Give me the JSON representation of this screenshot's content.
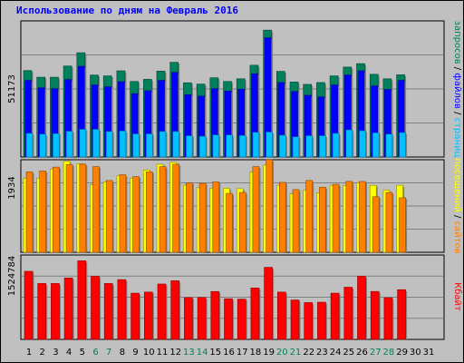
{
  "title": "Использование по дням на Февраль 2016",
  "colors": {
    "background": "#c0c0c0",
    "hits": "#00805c",
    "files": "#0000ff",
    "pages": "#00c0ff",
    "visits": "#ffff00",
    "sites": "#ff8000",
    "kbytes": "#ff0000",
    "weekday_label": "#000000",
    "weekend_label": "#00805c"
  },
  "chart_data": [
    {
      "type": "bar",
      "panel": "top",
      "max_label": "51173",
      "categories": [
        "1",
        "2",
        "3",
        "4",
        "5",
        "6",
        "7",
        "8",
        "9",
        "10",
        "11",
        "12",
        "13",
        "14",
        "15",
        "16",
        "17",
        "18",
        "19",
        "20",
        "21",
        "22",
        "23",
        "24",
        "25",
        "26",
        "27",
        "28",
        "29",
        "30",
        "31"
      ],
      "weekend_days": [
        "6",
        "7",
        "13",
        "14",
        "20",
        "21",
        "27",
        "28"
      ],
      "ylim": [
        0,
        51173
      ],
      "series": [
        {
          "name": "запросов",
          "color_key": "hits",
          "values": [
            32500,
            30000,
            30000,
            34200,
            39200,
            30800,
            30500,
            32400,
            28400,
            29200,
            32300,
            35600,
            27900,
            27400,
            29800,
            28400,
            29400,
            34500,
            47700,
            32200,
            28200,
            27300,
            28000,
            30500,
            33800,
            35100,
            31100,
            29400,
            30900,
            null,
            null
          ]
        },
        {
          "name": "файлов",
          "color_key": "files",
          "values": [
            28800,
            26000,
            25700,
            29100,
            34100,
            27100,
            26400,
            28300,
            23800,
            24900,
            28800,
            31800,
            23400,
            22900,
            25700,
            24800,
            25500,
            31300,
            44800,
            28000,
            24600,
            23200,
            22600,
            27100,
            30800,
            32400,
            26700,
            25400,
            28800,
            null,
            null
          ]
        },
        {
          "name": "страниц",
          "color_key": "pages",
          "values": [
            8900,
            8600,
            8800,
            9700,
            10400,
            10400,
            9600,
            9800,
            8700,
            8700,
            9600,
            9600,
            8000,
            7800,
            8300,
            8300,
            8100,
            9300,
            9400,
            8200,
            7600,
            8000,
            8000,
            8900,
            10200,
            9900,
            9100,
            8600,
            9200,
            null,
            null
          ]
        },
        {
          "name": "посещений",
          "color_key": "visits",
          "values": [
            1550,
            1550,
            1740,
            1900,
            1850,
            1410,
            1470,
            1600,
            1550,
            1720,
            1840,
            1880,
            1400,
            1350,
            1340,
            1340,
            1330,
            1680,
            1820,
            1400,
            1220,
            1300,
            1240,
            1400,
            1400,
            1450,
            1400,
            1300,
            1400,
            null,
            null
          ]
        },
        {
          "name": "сайтов",
          "color_key": "sites",
          "values": [
            1680,
            1700,
            1780,
            1830,
            1840,
            1790,
            1500,
            1620,
            1580,
            1680,
            1790,
            1840,
            1450,
            1440,
            1470,
            1230,
            1250,
            1790,
            1934,
            1460,
            1310,
            1500,
            1360,
            1420,
            1480,
            1480,
            1160,
            1250,
            1140,
            null,
            null
          ]
        },
        {
          "name": "Кбайт",
          "color_key": "kbytes",
          "values": [
            1230000,
            1010000,
            1010000,
            1110000,
            1420000,
            1140000,
            1010000,
            1080000,
            835000,
            855000,
            1000000,
            1060000,
            755000,
            757000,
            865000,
            735000,
            728000,
            930000,
            1302000,
            855000,
            712000,
            665000,
            672000,
            835000,
            943000,
            1140000,
            866000,
            753000,
            898000,
            null,
            null
          ]
        }
      ]
    }
  ],
  "right_legend": {
    "top": [
      {
        "text": "запросов",
        "color_key": "hits"
      },
      {
        "text": " / ",
        "color_key": "weekday_label"
      },
      {
        "text": "файлов",
        "color_key": "files"
      },
      {
        "text": " / ",
        "color_key": "weekday_label"
      },
      {
        "text": "страниц",
        "color_key": "pages"
      }
    ],
    "middle": [
      {
        "text": "посещений",
        "color_key": "visits"
      },
      {
        "text": " / ",
        "color_key": "weekday_label"
      },
      {
        "text": "сайтов",
        "color_key": "sites"
      }
    ],
    "bottom": [
      {
        "text": "Кбайт",
        "color_key": "kbytes"
      }
    ]
  },
  "max_labels": {
    "top": "51173",
    "middle": "1934",
    "bottom": "1524784"
  },
  "scale_max": {
    "top": 51173,
    "middle": 1934,
    "bottom": 1524784
  }
}
